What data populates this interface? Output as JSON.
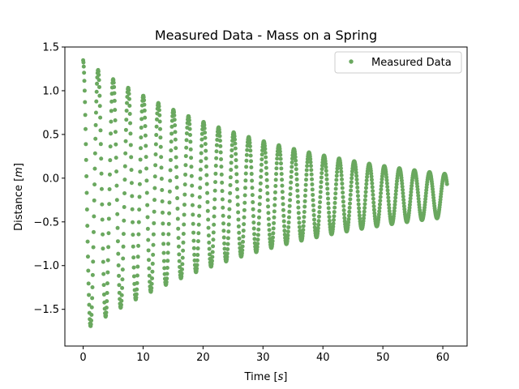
{
  "chart_data": {
    "type": "scatter",
    "title": "Measured Data - Mass on a Spring",
    "xlabel": "Time [s]",
    "ylabel": "Distance [m]",
    "xlim": [
      -3.05,
      64.05
    ],
    "ylim": [
      -1.92,
      1.5
    ],
    "xticks": [
      0,
      10,
      20,
      30,
      40,
      50,
      60
    ],
    "xtick_labels": [
      "0",
      "10",
      "20",
      "30",
      "40",
      "50",
      "60"
    ],
    "yticks": [
      -1.5,
      -1.0,
      -0.5,
      0.0,
      0.5,
      1.0,
      1.5
    ],
    "ytick_labels": [
      "−1.5",
      "−1.0",
      "−0.5",
      "0.0",
      "0.5",
      "1.0",
      "1.5"
    ],
    "grid": false,
    "legend_position": "top-right",
    "series": [
      {
        "name": "Measured Data",
        "color": "#6aa85f",
        "marker": "circle",
        "model": {
          "equation": "y = -0.2 + 1.55*exp(-t/33) * cos(2.5*t + 0.05)",
          "t_start": 0,
          "t_end": 60.7,
          "step": 0.05
        }
      }
    ]
  }
}
